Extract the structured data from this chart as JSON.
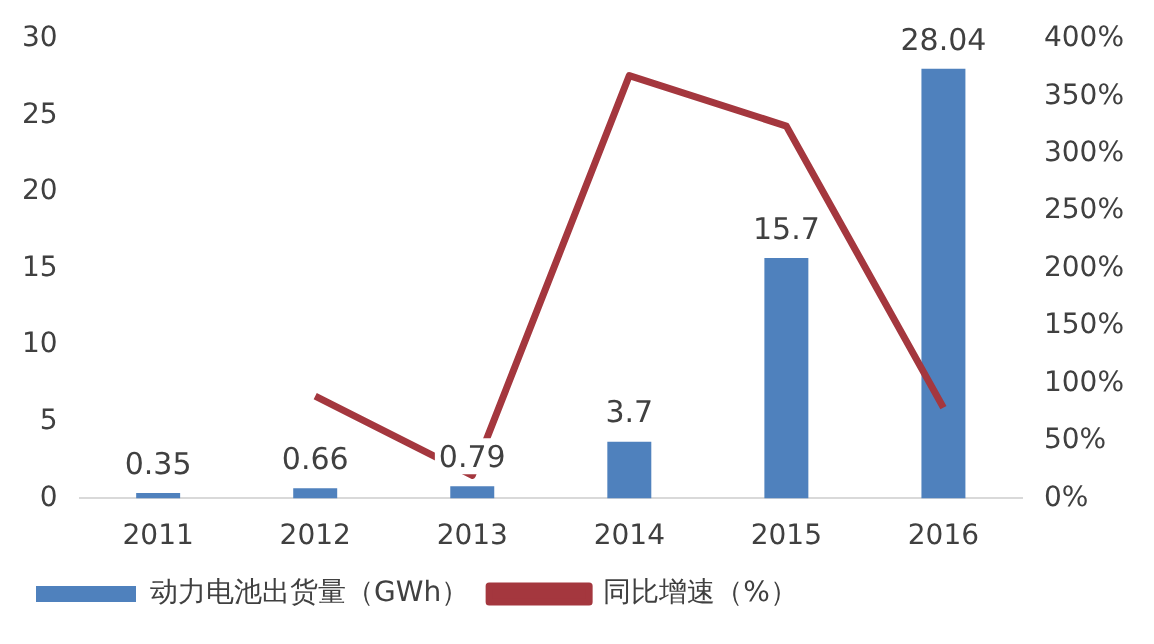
{
  "chart_data": {
    "type": "bar",
    "categories": [
      "2011",
      "2012",
      "2013",
      "2014",
      "2015",
      "2016"
    ],
    "series": [
      {
        "name": "动力电池出货量（GWh）",
        "color": "#4f81bd",
        "values": [
          0.35,
          0.66,
          0.79,
          3.7,
          15.7,
          28.04
        ],
        "value_labels": [
          "0.35",
          "0.66",
          "0.79",
          "3.7",
          "15.7",
          "28.04"
        ]
      },
      {
        "name": "同比增速（%）",
        "type": "line",
        "axis": "y2",
        "color": "#a4373e",
        "values": [
          null,
          89,
          20,
          368,
          324,
          79
        ]
      }
    ],
    "ylim": [
      0,
      30
    ],
    "yticks": [
      0,
      5,
      10,
      15,
      20,
      25,
      30
    ],
    "y2lim": [
      0,
      400
    ],
    "y2ticks": [
      {
        "value": 0,
        "label": "0%"
      },
      {
        "value": 50,
        "label": "50%"
      },
      {
        "value": 100,
        "label": "100%"
      },
      {
        "value": 150,
        "label": "150%"
      },
      {
        "value": 200,
        "label": "200%"
      },
      {
        "value": 250,
        "label": "250%"
      },
      {
        "value": 300,
        "label": "300%"
      },
      {
        "value": 350,
        "label": "350%"
      },
      {
        "value": 400,
        "label": "400%"
      }
    ],
    "grid": false,
    "legend": "bottom",
    "marker": "none",
    "line_style": "solid"
  }
}
